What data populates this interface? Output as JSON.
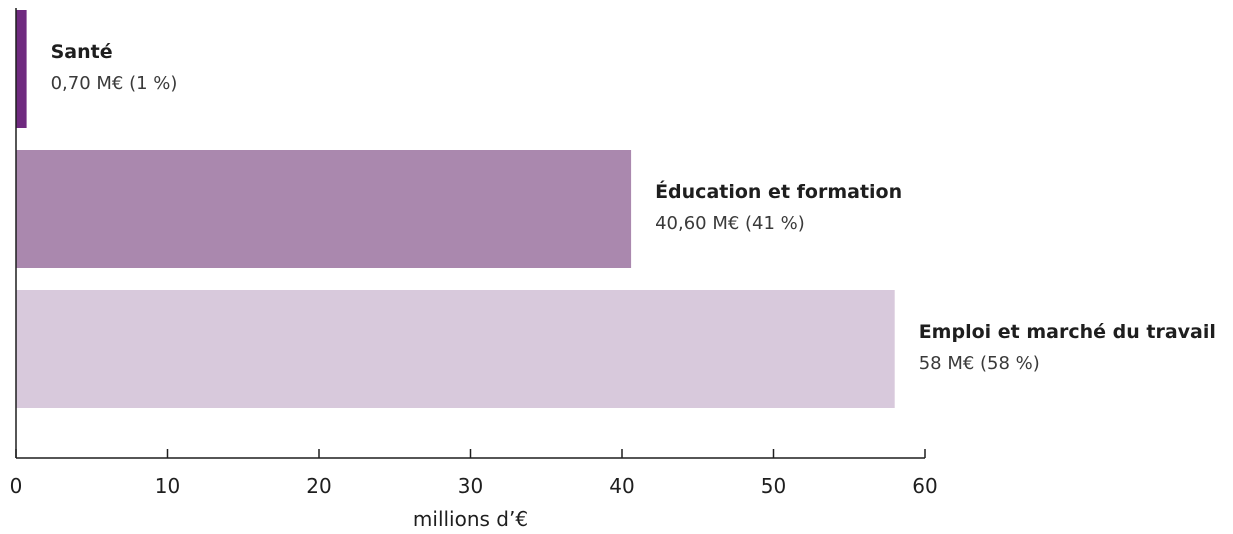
{
  "chart_data": {
    "type": "bar",
    "orientation": "horizontal",
    "categories": [
      "Santé",
      "Éducation et formation",
      "Emploi et marché du travail"
    ],
    "values": [
      0.7,
      40.6,
      58
    ],
    "value_labels": [
      "0,70 M€ (1 %)",
      "40,60 M€ (41 %)",
      "58 M€ (58 %)"
    ],
    "colors": [
      "#6f2a7f",
      "#aa88ae",
      "#d8c9dc"
    ],
    "xlabel": "millions d’€",
    "ylabel": "",
    "xlim": [
      0,
      60
    ],
    "xticks": [
      0,
      10,
      20,
      30,
      40,
      50,
      60
    ],
    "grid": false,
    "legend": "none",
    "axis_color": "#1e1e1e"
  }
}
